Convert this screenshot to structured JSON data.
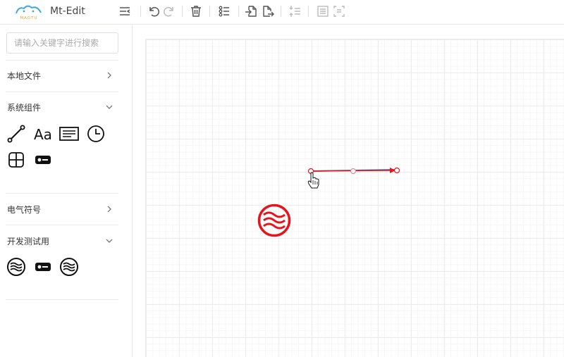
{
  "app": {
    "logo_text": "MAOTU",
    "title": "Mt-Edit"
  },
  "toolbar": {
    "buttons": [
      {
        "name": "menu-fold-button",
        "icon": "menu-fold-icon"
      },
      {
        "name": "undo-button",
        "icon": "undo-icon"
      },
      {
        "name": "redo-button",
        "icon": "redo-icon"
      },
      {
        "name": "delete-button",
        "icon": "trash-icon"
      },
      {
        "name": "layer-list-button",
        "icon": "list-icon"
      },
      {
        "name": "import-button",
        "icon": "file-import-icon"
      },
      {
        "name": "export-button",
        "icon": "file-export-icon"
      },
      {
        "name": "align-button",
        "icon": "align-icon"
      },
      {
        "name": "fit-view-button",
        "icon": "fit-view-icon"
      },
      {
        "name": "select-area-button",
        "icon": "select-area-icon"
      }
    ]
  },
  "sidebar": {
    "search_placeholder": "请输入关键字进行搜索",
    "sections": [
      {
        "label": "本地文件",
        "expanded": false
      },
      {
        "label": "系统组件",
        "expanded": true,
        "items": [
          "line-icon",
          "text-icon",
          "paragraph-icon",
          "clock-icon",
          "grid-icon",
          "switch-icon"
        ]
      },
      {
        "label": "电气符号",
        "expanded": false
      },
      {
        "label": "开发测试用",
        "expanded": true,
        "items": [
          "wave-circle-icon",
          "switch-icon",
          "wave-circle-icon"
        ]
      }
    ]
  },
  "colors": {
    "accent_red": "#e8141b",
    "icon_gray": "#555555",
    "line_blue": "#3d7aa8"
  }
}
